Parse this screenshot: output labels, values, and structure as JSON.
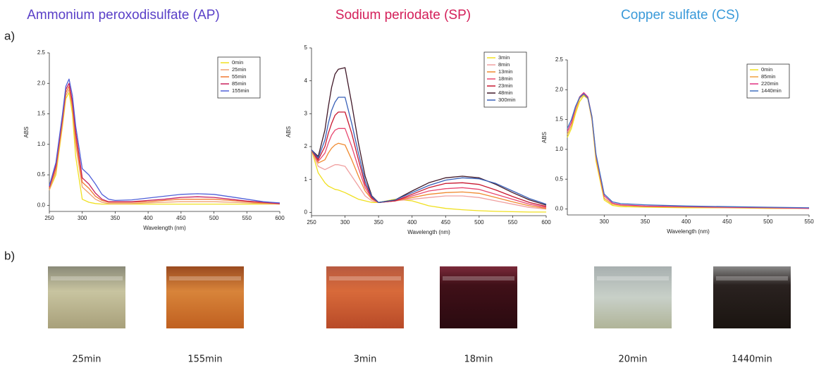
{
  "panel_labels": [
    "a)",
    "b)"
  ],
  "chart_data": [
    {
      "type": "line",
      "title": "Ammonium  peroxodisulfate (AP)",
      "title_color": "#5a40c8",
      "xlabel": "Wavelength (nm)",
      "ylabel": "ABS",
      "legend": "upper right",
      "x": [
        250,
        260,
        270,
        275,
        280,
        285,
        290,
        300,
        310,
        320,
        330,
        340,
        350,
        375,
        400,
        425,
        450,
        475,
        500,
        525,
        550,
        575,
        600
      ],
      "xlim": [
        250,
        600
      ],
      "xticks": [
        250,
        300,
        350,
        400,
        450,
        500,
        550,
        600
      ],
      "ylim": [
        -0.1,
        2.5
      ],
      "yticks": [
        {
          "value": 0,
          "label": "0.0"
        },
        0.5,
        {
          "value": 1,
          "label": "1.0"
        },
        1.5,
        {
          "value": 2,
          "label": "2.0"
        },
        2.5
      ],
      "series": [
        {
          "name": "0min",
          "color": "#f0e020",
          "values": [
            0.25,
            0.5,
            1.3,
            1.75,
            1.85,
            1.5,
            0.8,
            0.1,
            0.05,
            0.03,
            0.02,
            0.02,
            0.02,
            0.02,
            0.02,
            0.02,
            0.02,
            0.02,
            0.02,
            0.02,
            0.02,
            0.02,
            0.02
          ]
        },
        {
          "name": "25min",
          "color": "#f0a070",
          "values": [
            0.25,
            0.55,
            1.35,
            1.8,
            1.9,
            1.6,
            1.0,
            0.3,
            0.2,
            0.1,
            0.05,
            0.03,
            0.03,
            0.03,
            0.04,
            0.05,
            0.06,
            0.06,
            0.06,
            0.05,
            0.04,
            0.03,
            0.02
          ]
        },
        {
          "name": "55min",
          "color": "#f07830",
          "values": [
            0.28,
            0.6,
            1.4,
            1.85,
            1.95,
            1.65,
            1.1,
            0.38,
            0.28,
            0.15,
            0.08,
            0.05,
            0.05,
            0.05,
            0.06,
            0.08,
            0.1,
            0.1,
            0.1,
            0.08,
            0.06,
            0.04,
            0.03
          ]
        },
        {
          "name": "85min",
          "color": "#c8205a",
          "values": [
            0.3,
            0.65,
            1.45,
            1.9,
            2.0,
            1.7,
            1.2,
            0.45,
            0.35,
            0.2,
            0.1,
            0.06,
            0.06,
            0.06,
            0.08,
            0.1,
            0.13,
            0.14,
            0.13,
            0.1,
            0.07,
            0.05,
            0.03
          ]
        },
        {
          "name": "155min",
          "color": "#5060d8",
          "values": [
            0.32,
            0.7,
            1.5,
            1.95,
            2.07,
            1.8,
            1.3,
            0.6,
            0.5,
            0.35,
            0.18,
            0.1,
            0.08,
            0.09,
            0.12,
            0.15,
            0.18,
            0.19,
            0.18,
            0.14,
            0.1,
            0.06,
            0.04
          ]
        }
      ]
    },
    {
      "type": "line",
      "title": "Sodium periodate (SP)",
      "title_color": "#d4205a",
      "xlabel": "Wavelength (nm)",
      "ylabel": "ABS",
      "legend": "upper right",
      "x": [
        250,
        260,
        270,
        275,
        280,
        285,
        290,
        300,
        310,
        320,
        330,
        340,
        350,
        375,
        400,
        425,
        450,
        475,
        500,
        525,
        550,
        575,
        600
      ],
      "xlim": [
        250,
        600
      ],
      "xticks": [
        250,
        300,
        350,
        400,
        450,
        500,
        550,
        600
      ],
      "ylim": [
        -0.1,
        5
      ],
      "yticks": [
        0,
        1,
        2,
        3,
        4,
        5
      ],
      "series": [
        {
          "name": "3min",
          "color": "#f0e020",
          "values": [
            1.9,
            1.2,
            0.9,
            0.8,
            0.75,
            0.7,
            0.68,
            0.6,
            0.5,
            0.4,
            0.35,
            0.3,
            0.3,
            0.4,
            0.35,
            0.2,
            0.12,
            0.08,
            0.05,
            0.03,
            0.02,
            0.01,
            0.01
          ]
        },
        {
          "name": "8min",
          "color": "#f0a0a0",
          "values": [
            1.9,
            1.4,
            1.3,
            1.35,
            1.4,
            1.45,
            1.45,
            1.4,
            1.1,
            0.8,
            0.5,
            0.35,
            0.3,
            0.35,
            0.4,
            0.45,
            0.5,
            0.5,
            0.45,
            0.35,
            0.25,
            0.15,
            0.1
          ]
        },
        {
          "name": "13min",
          "color": "#f08a30",
          "values": [
            1.9,
            1.5,
            1.6,
            1.8,
            1.95,
            2.05,
            2.1,
            2.05,
            1.6,
            1.1,
            0.65,
            0.4,
            0.3,
            0.35,
            0.45,
            0.55,
            0.6,
            0.62,
            0.58,
            0.45,
            0.32,
            0.2,
            0.12
          ]
        },
        {
          "name": "18min",
          "color": "#e84870",
          "values": [
            1.9,
            1.55,
            1.8,
            2.1,
            2.35,
            2.5,
            2.55,
            2.55,
            2.0,
            1.35,
            0.75,
            0.42,
            0.3,
            0.35,
            0.5,
            0.65,
            0.72,
            0.75,
            0.7,
            0.55,
            0.4,
            0.25,
            0.15
          ]
        },
        {
          "name": "23min",
          "color": "#c81830",
          "values": [
            1.9,
            1.6,
            2.0,
            2.4,
            2.7,
            2.95,
            3.05,
            3.05,
            2.4,
            1.6,
            0.85,
            0.45,
            0.3,
            0.35,
            0.55,
            0.75,
            0.88,
            0.9,
            0.85,
            0.68,
            0.48,
            0.3,
            0.18
          ]
        },
        {
          "name": "48min",
          "color": "#401828",
          "values": [
            1.9,
            1.7,
            2.5,
            3.2,
            3.8,
            4.2,
            4.35,
            4.4,
            3.3,
            2.1,
            1.1,
            0.5,
            0.3,
            0.38,
            0.65,
            0.9,
            1.05,
            1.1,
            1.05,
            0.85,
            0.6,
            0.38,
            0.22
          ]
        },
        {
          "name": "300min",
          "color": "#3860b8",
          "values": [
            1.9,
            1.65,
            2.2,
            2.7,
            3.1,
            3.35,
            3.5,
            3.5,
            2.7,
            1.8,
            0.95,
            0.48,
            0.3,
            0.38,
            0.6,
            0.82,
            0.98,
            1.05,
            1.02,
            0.88,
            0.65,
            0.42,
            0.25
          ]
        }
      ]
    },
    {
      "type": "line",
      "title": "Copper sulfate (CS)",
      "title_color": "#3a9ad9",
      "xlabel": "Wavelength (nm)",
      "ylabel": "ABS",
      "legend": "upper right",
      "x": [
        255,
        260,
        265,
        270,
        275,
        280,
        285,
        290,
        300,
        310,
        320,
        350,
        400,
        450,
        500,
        550
      ],
      "xlim": [
        255,
        550
      ],
      "xticks": [
        300,
        350,
        400,
        450,
        500,
        550
      ],
      "ylim": [
        -0.1,
        2.5
      ],
      "yticks": [
        {
          "value": 0,
          "label": "0.0"
        },
        0.5,
        {
          "value": 1,
          "label": "1.0"
        },
        1.5,
        {
          "value": 2,
          "label": "2.0"
        },
        2.5
      ],
      "series": [
        {
          "name": "0min",
          "color": "#f0e020",
          "values": [
            1.2,
            1.35,
            1.6,
            1.8,
            1.9,
            1.85,
            1.5,
            0.8,
            0.15,
            0.06,
            0.04,
            0.03,
            0.02,
            0.02,
            0.01,
            0.01
          ]
        },
        {
          "name": "85min",
          "color": "#f0a040",
          "values": [
            1.25,
            1.4,
            1.65,
            1.85,
            1.92,
            1.85,
            1.5,
            0.85,
            0.18,
            0.08,
            0.06,
            0.04,
            0.03,
            0.02,
            0.02,
            0.01
          ]
        },
        {
          "name": "220min",
          "color": "#e03080",
          "values": [
            1.3,
            1.45,
            1.7,
            1.88,
            1.95,
            1.88,
            1.55,
            0.9,
            0.22,
            0.1,
            0.07,
            0.05,
            0.04,
            0.03,
            0.02,
            0.01
          ]
        },
        {
          "name": "1440min",
          "color": "#4070c0",
          "values": [
            1.35,
            1.5,
            1.72,
            1.87,
            1.93,
            1.86,
            1.55,
            0.92,
            0.25,
            0.12,
            0.09,
            0.07,
            0.05,
            0.04,
            0.03,
            0.02
          ]
        }
      ]
    }
  ],
  "photos": [
    {
      "caption": "25min"
    },
    {
      "caption": "155min"
    },
    {
      "caption": "3min"
    },
    {
      "caption": "18min"
    },
    {
      "caption": "20min"
    },
    {
      "caption": "1440min"
    }
  ]
}
